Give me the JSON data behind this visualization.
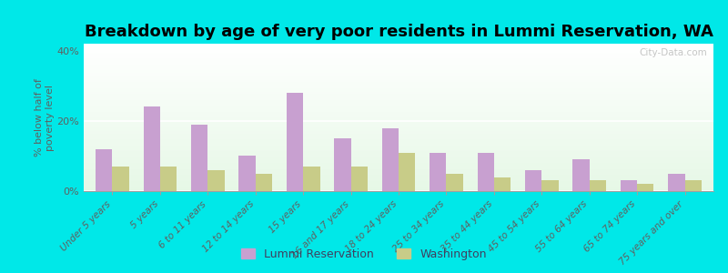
{
  "title": "Breakdown by age of very poor residents in Lummi Reservation, WA",
  "ylabel": "% below half of\npoverty level",
  "categories": [
    "Under 5 years",
    "5 years",
    "6 to 11 years",
    "12 to 14 years",
    "15 years",
    "16 and 17 years",
    "18 to 24 years",
    "25 to 34 years",
    "35 to 44 years",
    "45 to 54 years",
    "55 to 64 years",
    "65 to 74 years",
    "75 years and over"
  ],
  "lummi": [
    12,
    24,
    19,
    10,
    28,
    15,
    18,
    11,
    11,
    6,
    9,
    3,
    5
  ],
  "washington": [
    7,
    7,
    6,
    5,
    7,
    7,
    11,
    5,
    4,
    3,
    3,
    2,
    3
  ],
  "lummi_color": "#c8a0d0",
  "washington_color": "#c8cc88",
  "outer_bg": "#00e8e8",
  "ylim": [
    0,
    42
  ],
  "yticks": [
    0,
    20,
    40
  ],
  "ytick_labels": [
    "0%",
    "20%",
    "40%"
  ],
  "bar_width": 0.35,
  "title_fontsize": 13,
  "label_fontsize": 7.5,
  "tick_fontsize": 8,
  "legend_fontsize": 9,
  "watermark": "City-Data.com"
}
